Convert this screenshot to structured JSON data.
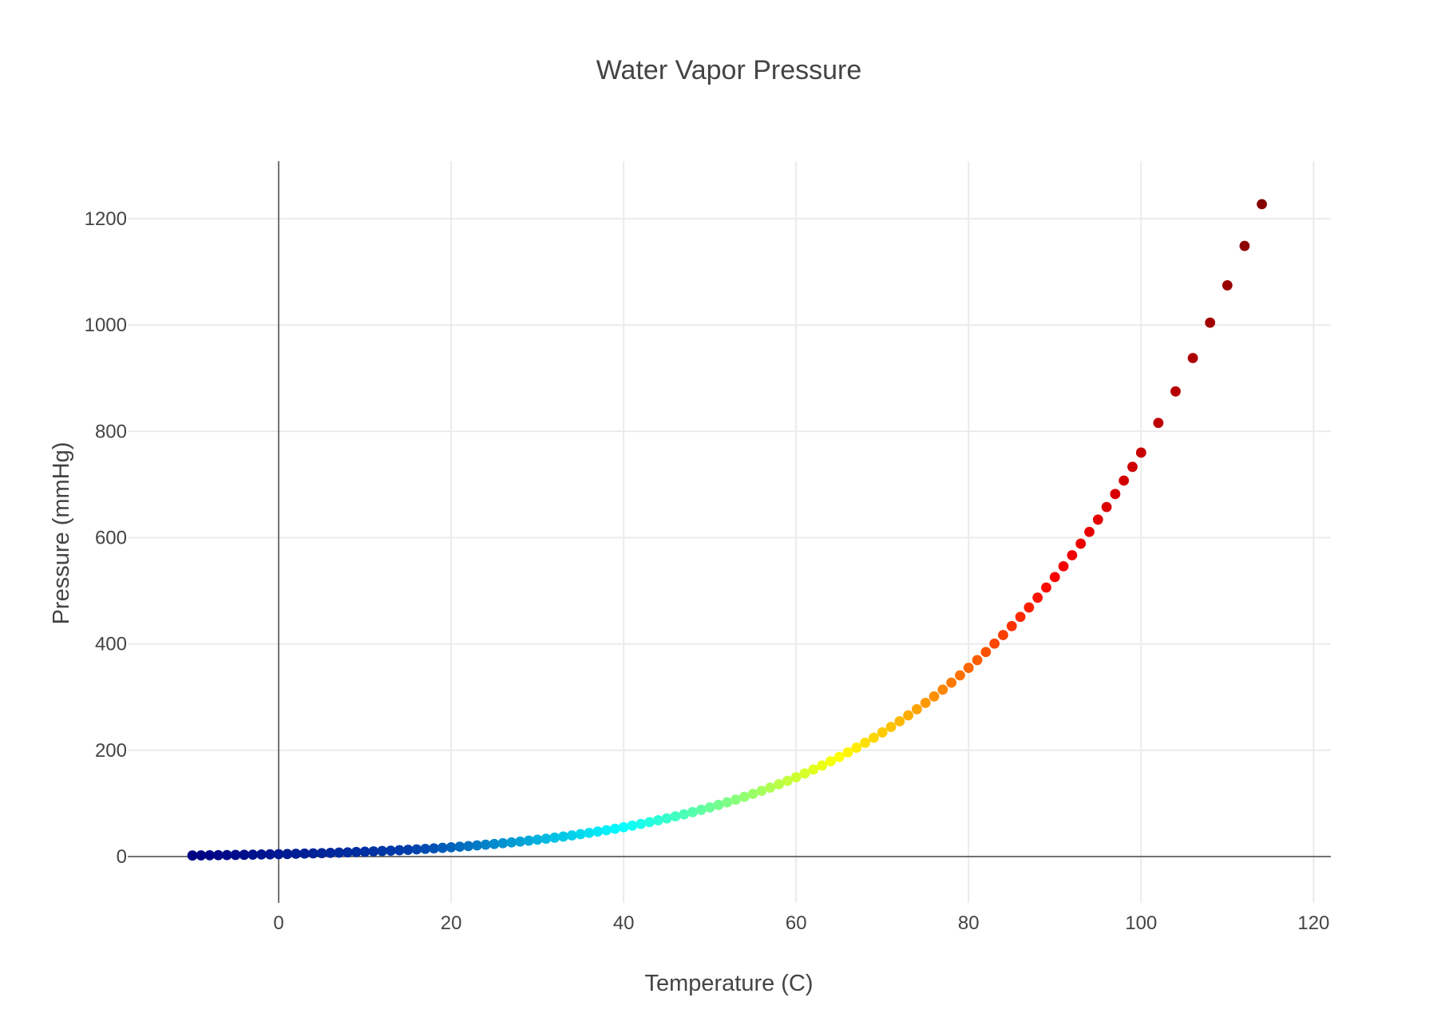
{
  "chart_data": {
    "type": "scatter",
    "title": "Water Vapor Pressure",
    "xlabel": "Temperature (C)",
    "ylabel": "Pressure (mmHg)",
    "xlim": [
      -17.5,
      122
    ],
    "ylim": [
      -87,
      1308
    ],
    "x_ticks": [
      0,
      20,
      40,
      60,
      80,
      100,
      120
    ],
    "y_ticks": [
      0,
      200,
      400,
      600,
      800,
      1000,
      1200
    ],
    "x_tick_labels": [
      "0",
      "20",
      "40",
      "60",
      "80",
      "100",
      "120"
    ],
    "y_tick_labels": [
      "0",
      "200",
      "400",
      "600",
      "800",
      "1000",
      "1200"
    ],
    "grid": true,
    "zero_lines": true,
    "colorscale": "jet",
    "colorscale_colors": [
      "#000083",
      "#003caa",
      "#05ffff",
      "#ffff00",
      "#fa0000",
      "#800000"
    ],
    "x": [
      -10,
      -9,
      -8,
      -7,
      -6,
      -5,
      -4,
      -3,
      -2,
      -1,
      0,
      1,
      2,
      3,
      4,
      5,
      6,
      7,
      8,
      9,
      10,
      11,
      12,
      13,
      14,
      15,
      16,
      17,
      18,
      19,
      20,
      21,
      22,
      23,
      24,
      25,
      26,
      27,
      28,
      29,
      30,
      31,
      32,
      33,
      34,
      35,
      36,
      37,
      38,
      39,
      40,
      41,
      42,
      43,
      44,
      45,
      46,
      47,
      48,
      49,
      50,
      51,
      52,
      53,
      54,
      55,
      56,
      57,
      58,
      59,
      60,
      61,
      62,
      63,
      64,
      65,
      66,
      67,
      68,
      69,
      70,
      71,
      72,
      73,
      74,
      75,
      76,
      77,
      78,
      79,
      80,
      81,
      82,
      83,
      84,
      85,
      86,
      87,
      88,
      89,
      90,
      91,
      92,
      93,
      94,
      95,
      96,
      97,
      98,
      99,
      100,
      102,
      104,
      106,
      108,
      110,
      112,
      114
    ],
    "y": [
      2.1,
      2.3,
      2.5,
      2.7,
      2.9,
      3.2,
      3.4,
      3.7,
      4.0,
      4.3,
      4.6,
      4.9,
      5.3,
      5.7,
      6.1,
      6.5,
      7.0,
      7.5,
      8.0,
      8.6,
      9.2,
      9.8,
      10.5,
      11.2,
      12.0,
      12.8,
      13.6,
      14.5,
      15.5,
      16.5,
      17.5,
      18.7,
      19.8,
      21.1,
      22.4,
      23.8,
      25.2,
      26.7,
      28.3,
      30.0,
      31.8,
      33.7,
      35.7,
      37.7,
      39.9,
      42.2,
      44.6,
      47.1,
      49.7,
      52.4,
      55.3,
      58.3,
      61.5,
      64.8,
      68.3,
      71.9,
      75.7,
      79.6,
      83.7,
      88.0,
      92.5,
      97.2,
      102.1,
      107.2,
      112.5,
      118.0,
      123.8,
      129.8,
      136.1,
      142.6,
      149.4,
      156.4,
      163.8,
      171.4,
      179.3,
      187.5,
      196.1,
      205.0,
      214.2,
      223.7,
      233.7,
      243.9,
      254.6,
      265.7,
      277.2,
      289.1,
      301.4,
      314.1,
      327.3,
      341.0,
      355.1,
      369.7,
      384.9,
      400.6,
      416.8,
      433.6,
      450.9,
      468.7,
      487.1,
      506.1,
      525.8,
      546.1,
      567.0,
      588.6,
      610.9,
      633.9,
      657.6,
      682.1,
      707.3,
      733.2,
      760.0,
      815.9,
      875.1,
      937.9,
      1004.4,
      1074.6,
      1148.7,
      1227.3
    ]
  }
}
